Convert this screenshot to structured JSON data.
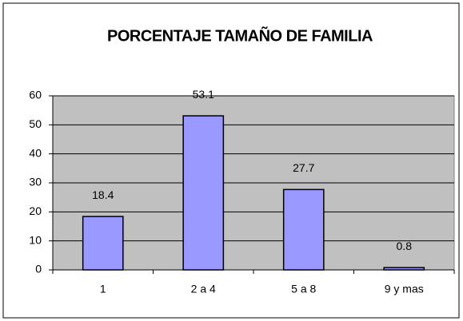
{
  "chart_data": {
    "type": "bar",
    "title": "PORCENTAJE TAMAÑO DE FAMILIA",
    "categories": [
      "1",
      "2 a 4",
      "5 a 8",
      "9 y mas"
    ],
    "values": [
      18.4,
      53.1,
      27.7,
      0.8
    ],
    "color": "#9999ff",
    "plot_background": "#c0c0c0",
    "ylim": [
      0,
      60
    ],
    "yticks": [
      0,
      10,
      20,
      30,
      40,
      50,
      60
    ],
    "grid": true,
    "data_labels": true
  }
}
